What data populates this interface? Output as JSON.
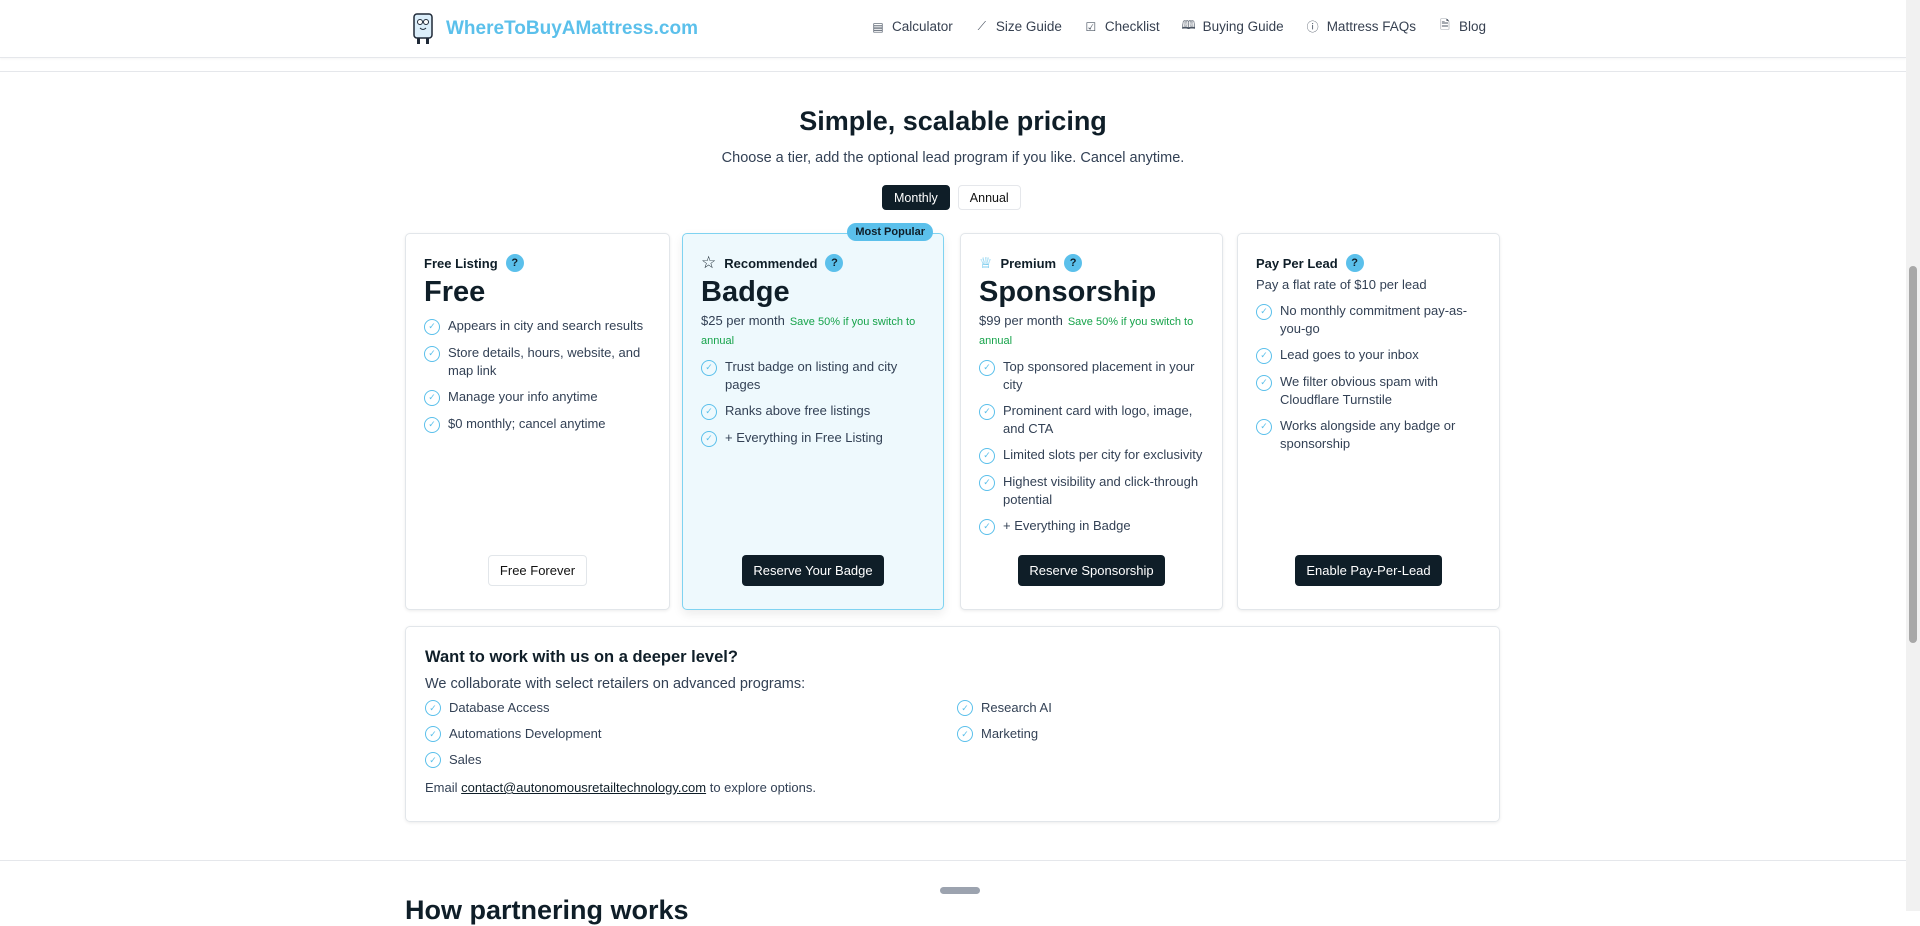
{
  "header": {
    "logo_text": "WhereToBuyAMattress.com",
    "nav": [
      {
        "label": "Calculator",
        "icon": "calculator-icon"
      },
      {
        "label": "Size Guide",
        "icon": "ruler-icon"
      },
      {
        "label": "Checklist",
        "icon": "checklist-icon"
      },
      {
        "label": "Buying Guide",
        "icon": "book-icon"
      },
      {
        "label": "Mattress FAQs",
        "icon": "question-circle-icon"
      },
      {
        "label": "Blog",
        "icon": "document-icon"
      }
    ]
  },
  "hero": {
    "title": "Simple, scalable pricing",
    "subtitle": "Choose a tier, add the optional lead program if you like. Cancel anytime.",
    "toggle": {
      "monthly": "Monthly",
      "annual": "Annual",
      "selected": "Monthly"
    }
  },
  "cards": [
    {
      "label": "Free Listing",
      "title": "Free",
      "features": [
        "Appears in city and search results",
        "Store details, hours, website, and map link",
        "Manage your info anytime",
        "$0 monthly; cancel anytime"
      ],
      "button": "Free Forever"
    },
    {
      "badge": "Most Popular",
      "label": "Recommended",
      "icon": "star-icon",
      "title": "Badge",
      "price": "$25 per month",
      "save": "Save 50% if you switch to annual",
      "features": [
        "Trust badge on listing and city pages",
        "Ranks above free listings",
        "+ Everything in Free Listing"
      ],
      "button": "Reserve Your Badge"
    },
    {
      "label": "Premium",
      "icon": "crown-icon",
      "title": "Sponsorship",
      "price": "$99 per month",
      "save": "Save 50% if you switch to annual",
      "features": [
        "Top sponsored placement in your city",
        "Prominent card with logo, image, and CTA",
        "Limited slots per city for exclusivity",
        "Highest visibility and click-through potential",
        "+ Everything in Badge"
      ],
      "button": "Reserve Sponsorship"
    },
    {
      "label": "Pay Per Lead",
      "price": "Pay a flat rate of $10 per lead",
      "features": [
        "No monthly commitment pay-as-you-go",
        "Lead goes to your inbox",
        "We filter obvious spam with Cloudflare Turnstile",
        "Works alongside any badge or sponsorship"
      ],
      "button": "Enable Pay-Per-Lead"
    }
  ],
  "deeper": {
    "title": "Want to work with us on a deeper level?",
    "desc": "We collaborate with select retailers on advanced programs:",
    "items": [
      "Database Access",
      "Research AI",
      "Automations Development",
      "Marketing",
      "Sales"
    ],
    "email_prefix": "Email",
    "email": "contact@autonomousretailtechnology.com",
    "email_suffix": "to explore options."
  },
  "next_section": {
    "title": "How partnering works"
  },
  "colors": {
    "accent": "#5bc0eb",
    "dark": "#0f1e28",
    "save_green": "#16a34a"
  }
}
